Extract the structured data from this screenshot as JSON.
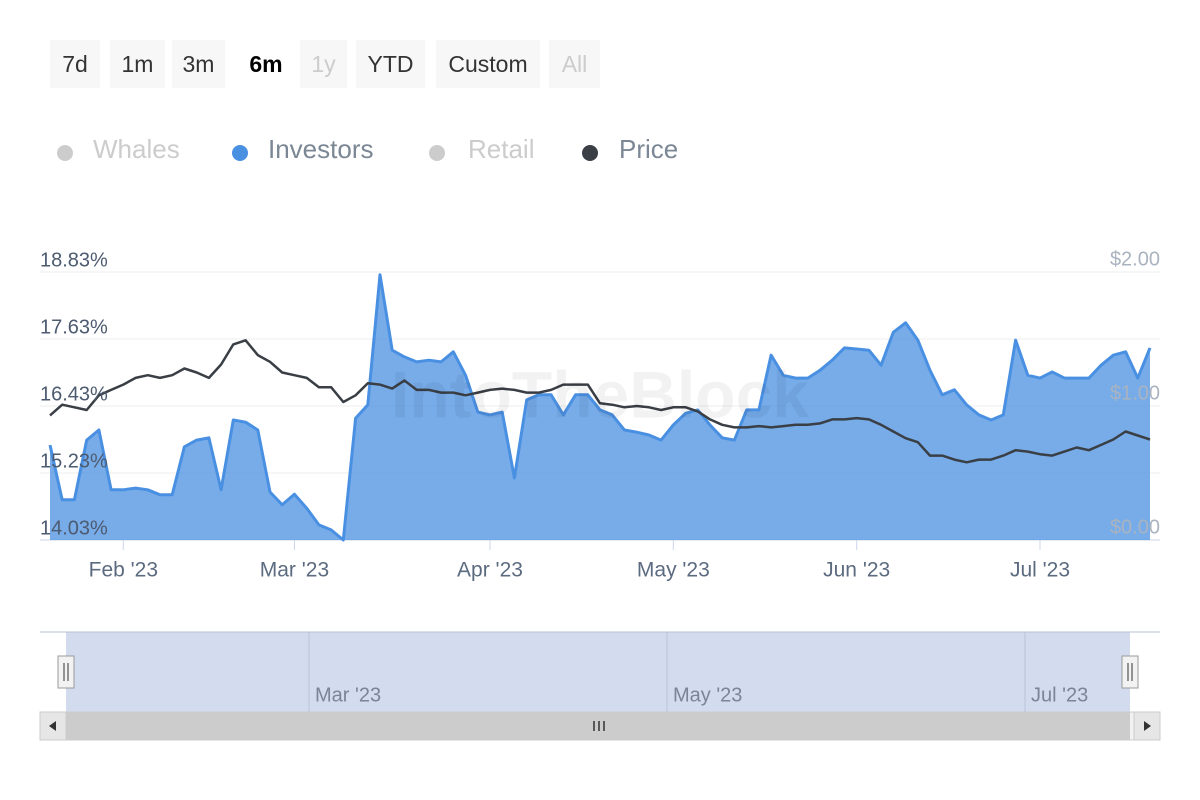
{
  "chart_data": {
    "type": "line",
    "range_selector": {
      "buttons": [
        "7d",
        "1m",
        "3m",
        "6m",
        "1y",
        "YTD",
        "Custom",
        "All"
      ],
      "selected": 3,
      "disabled": [
        4,
        7
      ]
    },
    "watermark": "IntoTheBlock",
    "categories": [
      null,
      null,
      null,
      null,
      null,
      null,
      "Feb '23",
      null,
      null,
      null,
      null,
      null,
      null,
      null,
      null,
      null,
      null,
      null,
      null,
      null,
      "Mar '23",
      null,
      null,
      null,
      null,
      null,
      null,
      null,
      null,
      null,
      null,
      null,
      null,
      null,
      null,
      null,
      "Apr '23",
      null,
      null,
      null,
      null,
      null,
      null,
      null,
      null,
      null,
      null,
      null,
      null,
      null,
      null,
      "May '23",
      null,
      null,
      null,
      null,
      null,
      null,
      null,
      null,
      null,
      null,
      null,
      null,
      null,
      null,
      "Jun '23",
      null,
      null,
      null,
      null,
      null,
      null,
      null,
      null,
      null,
      null,
      null,
      null,
      null,
      null,
      "Jul '23",
      null,
      null,
      null,
      null,
      null,
      null,
      null,
      null,
      null
    ],
    "series": [
      {
        "name": "Whales",
        "color": "#cccccc",
        "visible": false
      },
      {
        "name": "Investors",
        "color": "#4a90e2",
        "type": "area",
        "visible": true,
        "values": [
          15.73,
          14.75,
          14.75,
          15.82,
          16.0,
          14.93,
          14.93,
          14.96,
          14.93,
          14.84,
          14.84,
          15.7,
          15.82,
          15.86,
          14.93,
          16.18,
          16.14,
          16.0,
          14.89,
          14.66,
          14.85,
          14.6,
          14.3,
          14.21,
          14.03,
          16.21,
          16.45,
          18.78,
          17.43,
          17.31,
          17.22,
          17.25,
          17.22,
          17.4,
          16.98,
          16.32,
          16.27,
          16.32,
          15.14,
          16.54,
          16.63,
          16.63,
          16.27,
          16.63,
          16.63,
          16.36,
          16.27,
          16.0,
          15.96,
          15.91,
          15.82,
          16.09,
          16.3,
          16.36,
          16.09,
          15.86,
          15.82,
          16.36,
          16.36,
          17.34,
          16.98,
          16.93,
          16.93,
          17.07,
          17.25,
          17.47,
          17.45,
          17.43,
          17.16,
          17.75,
          17.92,
          17.61,
          17.07,
          16.63,
          16.72,
          16.45,
          16.27,
          16.18,
          16.27,
          17.61,
          16.98,
          16.93,
          17.04,
          16.93,
          16.93,
          16.93,
          17.16,
          17.34,
          17.4,
          16.93,
          17.47
        ]
      },
      {
        "name": "Retail",
        "color": "#cccccc",
        "visible": false
      },
      {
        "name": "Price",
        "color": "#3a3f45",
        "type": "line",
        "axis": "y2",
        "visible": true,
        "values": [
          0.93,
          1.01,
          0.99,
          0.97,
          1.08,
          1.12,
          1.16,
          1.21,
          1.23,
          1.21,
          1.23,
          1.28,
          1.25,
          1.21,
          1.31,
          1.46,
          1.49,
          1.38,
          1.33,
          1.25,
          1.23,
          1.21,
          1.14,
          1.14,
          1.03,
          1.08,
          1.17,
          1.16,
          1.13,
          1.19,
          1.12,
          1.12,
          1.1,
          1.1,
          1.08,
          1.1,
          1.12,
          1.13,
          1.12,
          1.1,
          1.1,
          1.12,
          1.16,
          1.16,
          1.16,
          1.02,
          1.01,
          0.99,
          1.0,
          0.99,
          0.97,
          0.99,
          0.99,
          0.96,
          0.9,
          0.86,
          0.84,
          0.84,
          0.85,
          0.84,
          0.85,
          0.86,
          0.86,
          0.87,
          0.9,
          0.9,
          0.91,
          0.9,
          0.86,
          0.81,
          0.76,
          0.73,
          0.63,
          0.63,
          0.6,
          0.58,
          0.6,
          0.6,
          0.63,
          0.67,
          0.66,
          0.64,
          0.63,
          0.66,
          0.69,
          0.67,
          0.71,
          0.75,
          0.81,
          0.78,
          0.75
        ]
      }
    ],
    "ylim": [
      14.03,
      18.83
    ],
    "yticks": [
      {
        "value": 14.03,
        "label": "14.03%"
      },
      {
        "value": 15.23,
        "label": "15.23%"
      },
      {
        "value": 16.43,
        "label": "16.43%"
      },
      {
        "value": 17.63,
        "label": "17.63%"
      },
      {
        "value": 18.83,
        "label": "18.83%"
      }
    ],
    "y2lim": [
      0,
      2
    ],
    "y2ticks": [
      {
        "value": 0,
        "label": "$0.00"
      },
      {
        "value": 1,
        "label": "$1.00"
      },
      {
        "value": 2,
        "label": "$2.00"
      }
    ],
    "grid": true,
    "navigator": {
      "labels": [
        "Mar '23",
        "May '23",
        "Jul '23"
      ]
    }
  }
}
